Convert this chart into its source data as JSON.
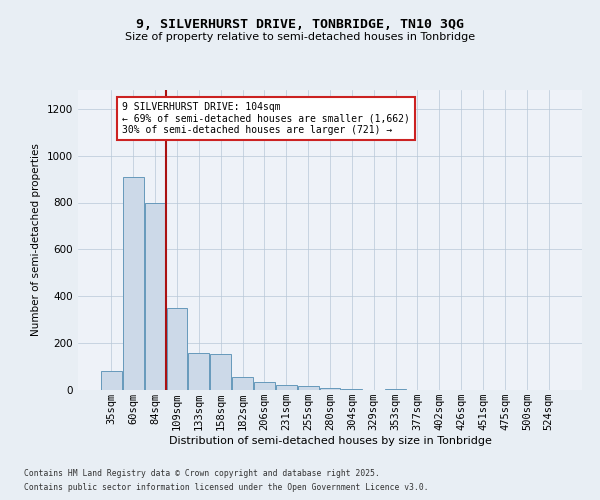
{
  "title1": "9, SILVERHURST DRIVE, TONBRIDGE, TN10 3QG",
  "title2": "Size of property relative to semi-detached houses in Tonbridge",
  "xlabel": "Distribution of semi-detached houses by size in Tonbridge",
  "ylabel": "Number of semi-detached properties",
  "categories": [
    "35sqm",
    "60sqm",
    "84sqm",
    "109sqm",
    "133sqm",
    "158sqm",
    "182sqm",
    "206sqm",
    "231sqm",
    "255sqm",
    "280sqm",
    "304sqm",
    "329sqm",
    "353sqm",
    "377sqm",
    "402sqm",
    "426sqm",
    "451sqm",
    "475sqm",
    "500sqm",
    "524sqm"
  ],
  "values": [
    80,
    910,
    800,
    350,
    160,
    155,
    55,
    35,
    20,
    15,
    10,
    5,
    0,
    5,
    0,
    0,
    0,
    0,
    0,
    0,
    0
  ],
  "bar_color": "#ccd9e8",
  "bar_edge_color": "#6699bb",
  "vline_x_index": 2.5,
  "vline_color": "#aa1111",
  "annotation_box_text": "9 SILVERHURST DRIVE: 104sqm\n← 69% of semi-detached houses are smaller (1,662)\n30% of semi-detached houses are larger (721) →",
  "ylim": [
    0,
    1280
  ],
  "yticks": [
    0,
    200,
    400,
    600,
    800,
    1000,
    1200
  ],
  "footer1": "Contains HM Land Registry data © Crown copyright and database right 2025.",
  "footer2": "Contains public sector information licensed under the Open Government Licence v3.0.",
  "bg_color": "#e8eef4",
  "plot_bg_color": "#eef2f8"
}
